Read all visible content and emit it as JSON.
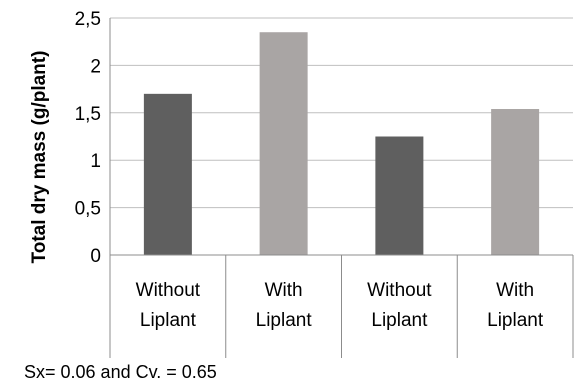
{
  "chart_data": {
    "type": "bar",
    "ylabel": "Total dry mass (g/plant)",
    "xlabel": "",
    "ylim": [
      0,
      2.5
    ],
    "y_ticks": [
      "0",
      "0,5",
      "1",
      "1,5",
      "2",
      "2,5"
    ],
    "grid": true,
    "categories": [
      [
        "Without",
        "Liplant"
      ],
      [
        "With",
        "Liplant"
      ],
      [
        "Without",
        "Liplant"
      ],
      [
        "With",
        "Liplant"
      ]
    ],
    "values": [
      1.7,
      2.35,
      1.25,
      1.54
    ],
    "bar_colors": [
      "#5f5f5f",
      "#a9a5a4",
      "#5f5f5f",
      "#a9a5a4"
    ]
  },
  "footnote": "Sx= 0.06 and Cv. = 0.65"
}
